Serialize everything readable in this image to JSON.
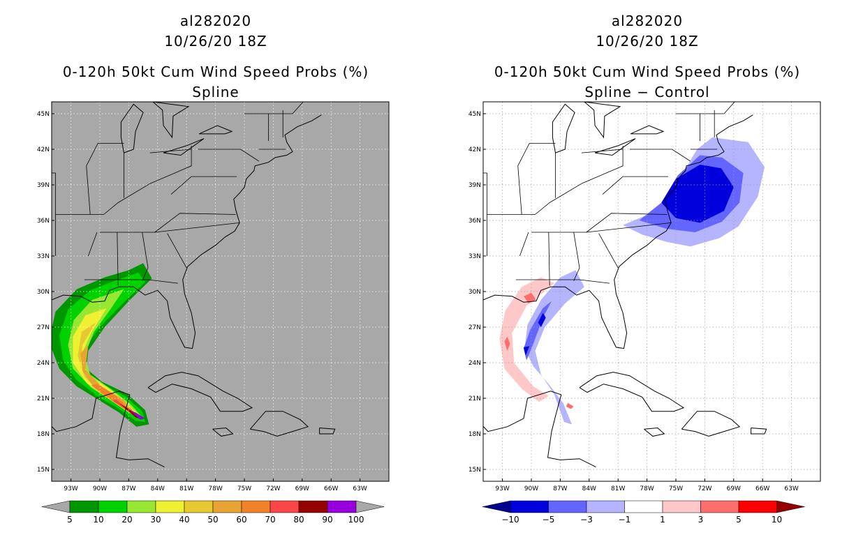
{
  "panels": [
    {
      "storm_id": "al282020",
      "datetime": "10/26/20 18Z",
      "product": "0-120h 50kt Cum Wind Speed Probs (%)",
      "subtitle": "Spline",
      "colorbar": {
        "labels": [
          "5",
          "10",
          "20",
          "30",
          "40",
          "50",
          "60",
          "70",
          "80",
          "90",
          "100"
        ],
        "colors": [
          "#009600",
          "#00d200",
          "#96e632",
          "#f0f032",
          "#e6c832",
          "#e6a532",
          "#f08228",
          "#fa4646",
          "#960000",
          "#9600dc"
        ],
        "under_color": "#a8a8a8",
        "over_color": "#a8a8a8"
      }
    },
    {
      "storm_id": "al282020",
      "datetime": "10/26/20 18Z",
      "product": "0-120h 50kt Cum Wind Speed Probs (%)",
      "subtitle": "Spline − Control",
      "colorbar": {
        "labels": [
          "−10",
          "−5",
          "−3",
          "−1",
          "1",
          "3",
          "5",
          "10"
        ],
        "colors": [
          "#0000dc",
          "#6464ff",
          "#b4b4ff",
          "#ffffff",
          "#ffc8c8",
          "#ff6e6e",
          "#ff0000"
        ],
        "under_color": "#00008c",
        "over_color": "#960000"
      }
    }
  ],
  "map": {
    "lat_labels": [
      "45N",
      "42N",
      "39N",
      "36N",
      "33N",
      "30N",
      "27N",
      "24N",
      "21N",
      "18N",
      "15N"
    ],
    "lon_labels": [
      "93W",
      "90W",
      "87W",
      "84W",
      "81W",
      "78W",
      "75W",
      "72W",
      "69W",
      "66W",
      "63W"
    ],
    "left_background": "#a8a8a8",
    "right_background": "#ffffff"
  }
}
